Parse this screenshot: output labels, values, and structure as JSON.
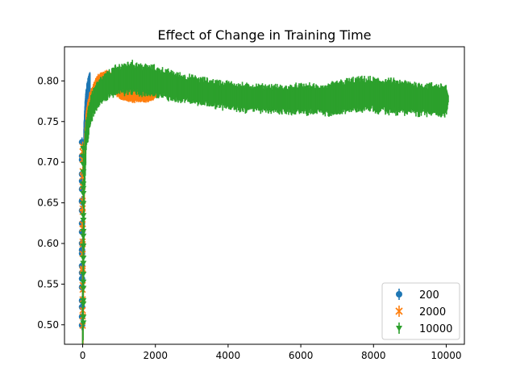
{
  "chart_data": {
    "type": "scatter",
    "title": "Effect of Change in Training Time",
    "xlabel": "",
    "ylabel": "",
    "xlim": [
      -500,
      10500
    ],
    "ylim": [
      0.476,
      0.842
    ],
    "x_ticks": [
      0,
      2000,
      4000,
      6000,
      8000,
      10000
    ],
    "y_ticks": [
      0.5,
      0.55,
      0.6,
      0.65,
      0.7,
      0.75,
      0.8
    ],
    "x_tick_labels": [
      "0",
      "2000",
      "4000",
      "6000",
      "8000",
      "10000"
    ],
    "y_tick_labels": [
      "0.50",
      "0.55",
      "0.60",
      "0.65",
      "0.70",
      "0.75",
      "0.80"
    ],
    "grid": false,
    "legend_position": "lower right",
    "series": [
      {
        "name": "200",
        "color": "#1f77b4",
        "marker": "circle",
        "x": [
          0,
          20,
          40,
          60,
          80,
          100,
          120,
          140,
          160,
          180,
          200
        ],
        "y": [
          0.5,
          0.66,
          0.72,
          0.75,
          0.765,
          0.775,
          0.782,
          0.788,
          0.793,
          0.797,
          0.8
        ],
        "yerr": [
          0.08,
          0.045,
          0.03,
          0.022,
          0.018,
          0.016,
          0.015,
          0.014,
          0.013,
          0.012,
          0.012
        ]
      },
      {
        "name": "2000",
        "color": "#ff7f0e",
        "marker": "x",
        "x": [
          0,
          50,
          100,
          200,
          300,
          400,
          500,
          600,
          700,
          800,
          900,
          1000,
          1100,
          1200,
          1300,
          1400,
          1500,
          1600,
          1700,
          1800,
          1900,
          2000,
          2100
        ],
        "y": [
          0.5,
          0.7,
          0.745,
          0.77,
          0.785,
          0.795,
          0.8,
          0.803,
          0.804,
          0.8,
          0.792,
          0.788,
          0.787,
          0.787,
          0.786,
          0.786,
          0.786,
          0.786,
          0.785,
          0.785,
          0.785,
          0.786,
          0.787
        ],
        "yerr": [
          0.08,
          0.03,
          0.022,
          0.016,
          0.013,
          0.011,
          0.01,
          0.009,
          0.008,
          0.008,
          0.008,
          0.009,
          0.01,
          0.011,
          0.012,
          0.012,
          0.012,
          0.012,
          0.011,
          0.01,
          0.009,
          0.006,
          0.004
        ]
      },
      {
        "name": "10000",
        "color": "#2ca02c",
        "marker": "triangle",
        "x": [
          0,
          50,
          100,
          200,
          300,
          400,
          500,
          700,
          900,
          1100,
          1300,
          1500,
          1700,
          2000,
          2300,
          2600,
          3000,
          3500,
          4000,
          4500,
          5000,
          5500,
          6000,
          6500,
          6700,
          7000,
          7500,
          8000,
          8500,
          9000,
          9500,
          10000,
          10060
        ],
        "y": [
          0.5,
          0.69,
          0.735,
          0.76,
          0.775,
          0.783,
          0.788,
          0.795,
          0.8,
          0.803,
          0.804,
          0.803,
          0.801,
          0.799,
          0.796,
          0.792,
          0.789,
          0.785,
          0.782,
          0.779,
          0.778,
          0.777,
          0.778,
          0.777,
          0.776,
          0.78,
          0.783,
          0.783,
          0.781,
          0.779,
          0.777,
          0.776,
          0.776
        ],
        "yerr": [
          0.08,
          0.03,
          0.025,
          0.02,
          0.018,
          0.017,
          0.017,
          0.018,
          0.019,
          0.02,
          0.021,
          0.021,
          0.02,
          0.02,
          0.019,
          0.019,
          0.018,
          0.018,
          0.018,
          0.018,
          0.018,
          0.018,
          0.019,
          0.019,
          0.02,
          0.021,
          0.022,
          0.022,
          0.022,
          0.021,
          0.021,
          0.021,
          0.004
        ]
      }
    ]
  }
}
